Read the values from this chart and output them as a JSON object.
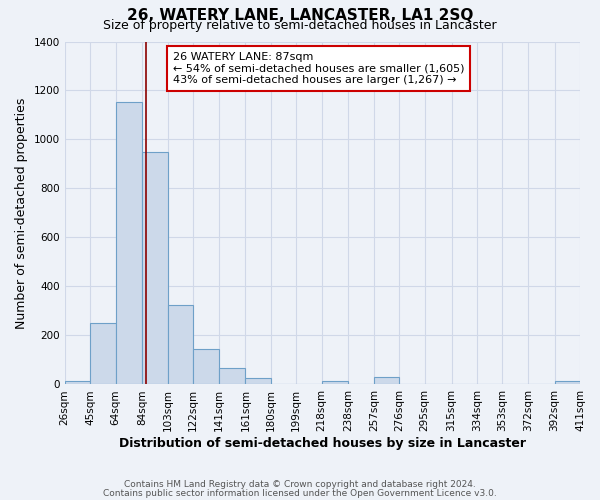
{
  "title": "26, WATERY LANE, LANCASTER, LA1 2SQ",
  "subtitle": "Size of property relative to semi-detached houses in Lancaster",
  "xlabel": "Distribution of semi-detached houses by size in Lancaster",
  "ylabel": "Number of semi-detached properties",
  "bar_edges": [
    26,
    45,
    64,
    84,
    103,
    122,
    141,
    161,
    180,
    199,
    218,
    238,
    257,
    276,
    295,
    315,
    334,
    353,
    372,
    392,
    411
  ],
  "bar_heights": [
    15,
    250,
    1155,
    950,
    325,
    145,
    68,
    25,
    0,
    0,
    15,
    0,
    30,
    0,
    0,
    0,
    0,
    0,
    0,
    15
  ],
  "bar_color": "#ccd9ea",
  "bar_edge_color": "#6ea0c8",
  "property_size": 87,
  "vline_color": "#8b0000",
  "annotation_line1": "26 WATERY LANE: 87sqm",
  "annotation_line2": "← 54% of semi-detached houses are smaller (1,605)",
  "annotation_line3": "43% of semi-detached houses are larger (1,267) →",
  "annotation_box_color": "white",
  "annotation_box_edge_color": "#cc0000",
  "ylim": [
    0,
    1400
  ],
  "yticks": [
    0,
    200,
    400,
    600,
    800,
    1000,
    1200,
    1400
  ],
  "tick_labels": [
    "26sqm",
    "45sqm",
    "64sqm",
    "84sqm",
    "103sqm",
    "122sqm",
    "141sqm",
    "161sqm",
    "180sqm",
    "199sqm",
    "218sqm",
    "238sqm",
    "257sqm",
    "276sqm",
    "295sqm",
    "315sqm",
    "334sqm",
    "353sqm",
    "372sqm",
    "392sqm",
    "411sqm"
  ],
  "footer_line1": "Contains HM Land Registry data © Crown copyright and database right 2024.",
  "footer_line2": "Contains public sector information licensed under the Open Government Licence v3.0.",
  "bg_color": "#eef2f8",
  "grid_color": "#d0d8e8",
  "title_fontsize": 11,
  "subtitle_fontsize": 9,
  "axis_label_fontsize": 9,
  "tick_fontsize": 7.5,
  "footer_fontsize": 6.5,
  "annotation_fontsize": 8
}
